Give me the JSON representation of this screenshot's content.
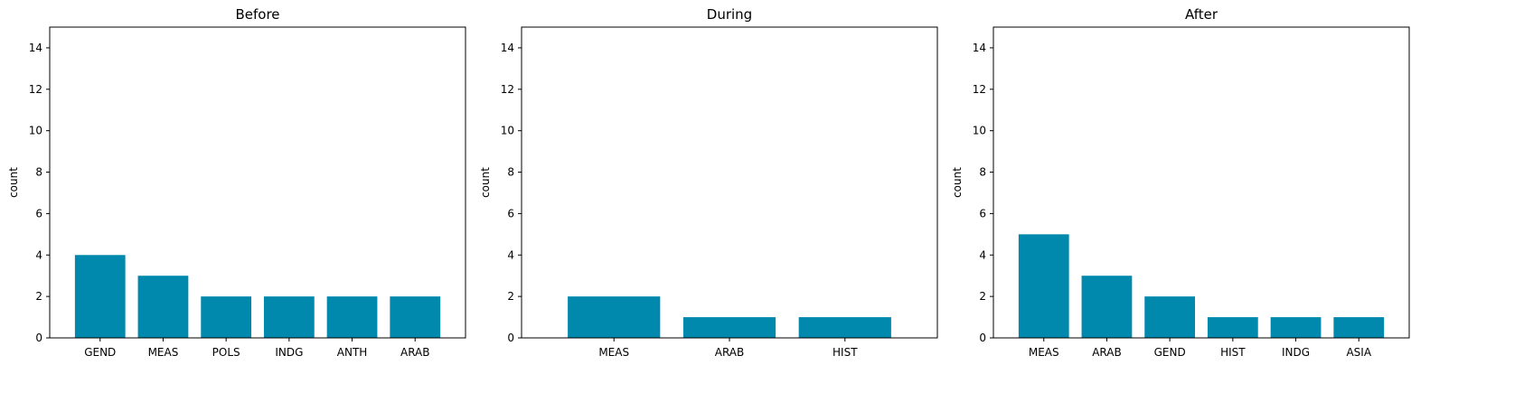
{
  "chart_data": [
    {
      "type": "bar",
      "title": "Before",
      "xlabel": "",
      "ylabel": "count",
      "ylim": [
        0,
        15
      ],
      "yticks": [
        0,
        2,
        4,
        6,
        8,
        10,
        12,
        14
      ],
      "categories": [
        "GEND",
        "MEAS",
        "POLS",
        "INDG",
        "ANTH",
        "ARAB"
      ],
      "values": [
        4,
        3,
        2,
        2,
        2,
        2
      ],
      "color": "#0088ad"
    },
    {
      "type": "bar",
      "title": "During",
      "xlabel": "",
      "ylabel": "count",
      "ylim": [
        0,
        15
      ],
      "yticks": [
        0,
        2,
        4,
        6,
        8,
        10,
        12,
        14
      ],
      "categories": [
        "MEAS",
        "ARAB",
        "HIST"
      ],
      "values": [
        2,
        1,
        1
      ],
      "color": "#0088ad"
    },
    {
      "type": "bar",
      "title": "After",
      "xlabel": "",
      "ylabel": "count",
      "ylim": [
        0,
        15
      ],
      "yticks": [
        0,
        2,
        4,
        6,
        8,
        10,
        12,
        14
      ],
      "categories": [
        "MEAS",
        "ARAB",
        "GEND",
        "HIST",
        "INDG",
        "ASIA"
      ],
      "values": [
        5,
        3,
        2,
        1,
        1,
        1
      ],
      "color": "#0088ad"
    }
  ]
}
